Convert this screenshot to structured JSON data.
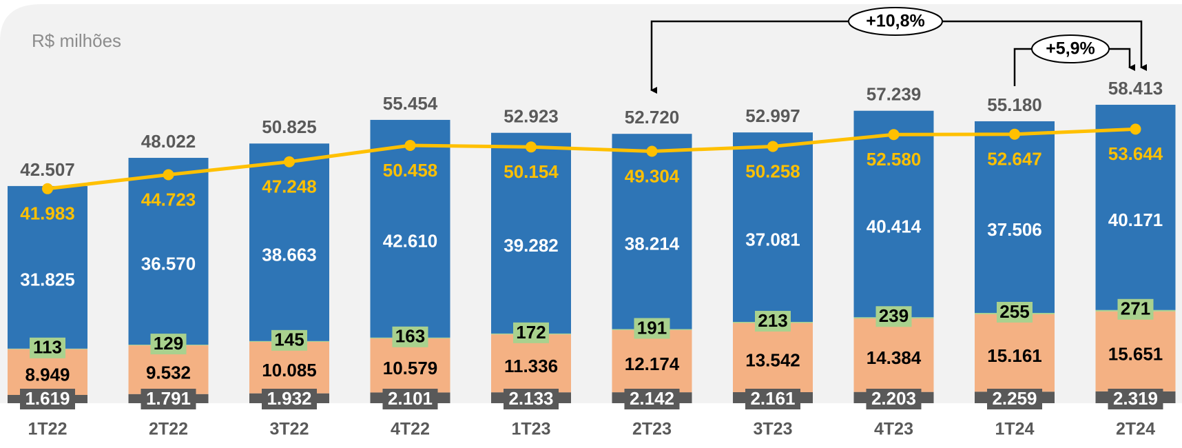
{
  "chart_data": {
    "type": "stacked-bar-line",
    "unit_label": "R$ milhões",
    "categories": [
      "1T22",
      "2T22",
      "3T22",
      "4T22",
      "1T23",
      "2T23",
      "3T23",
      "4T23",
      "1T24",
      "2T24"
    ],
    "series": [
      {
        "color": "#595959",
        "values": [
          1619,
          1791,
          1932,
          2101,
          2133,
          2142,
          2161,
          2203,
          2259,
          2319
        ],
        "value_labels": [
          "1.619",
          "1.791",
          "1.932",
          "2.101",
          "2.133",
          "2.142",
          "2.161",
          "2.203",
          "2.259",
          "2.319"
        ]
      },
      {
        "color": "#f4b183",
        "values": [
          8949,
          9532,
          10085,
          10579,
          11336,
          12174,
          13542,
          14384,
          15161,
          15651
        ],
        "value_labels": [
          "8.949",
          "9.532",
          "10.085",
          "10.579",
          "11.336",
          "12.174",
          "13.542",
          "14.384",
          "15.161",
          "15.651"
        ]
      },
      {
        "color": "#a9d18e",
        "values": [
          113,
          129,
          145,
          163,
          172,
          191,
          213,
          239,
          255,
          271
        ]
      },
      {
        "color": "#2e75b6",
        "values": [
          31825,
          36570,
          38663,
          42610,
          39282,
          38214,
          37081,
          40414,
          37506,
          40171
        ],
        "value_labels": [
          "31.825",
          "36.570",
          "38.663",
          "42.610",
          "39.282",
          "38.214",
          "37.081",
          "40.414",
          "37.506",
          "40.171"
        ]
      }
    ],
    "totals": {
      "values": [
        42507,
        48022,
        50825,
        55454,
        52923,
        52720,
        52997,
        57239,
        55180,
        58413
      ],
      "value_labels": [
        "42.507",
        "48.022",
        "50.825",
        "55.454",
        "52.923",
        "52.720",
        "52.997",
        "57.239",
        "55.180",
        "58.413"
      ]
    },
    "line_series": {
      "color": "#ffc000",
      "values": [
        41983,
        44723,
        47248,
        50458,
        50154,
        49304,
        50258,
        52580,
        52647,
        53644
      ],
      "value_labels": [
        "41.983",
        "44.723",
        "47.248",
        "50.458",
        "50.154",
        "49.304",
        "50.258",
        "52.580",
        "52.647",
        "53.644"
      ]
    },
    "annotations": [
      "+10,8%",
      "+5,9%"
    ]
  }
}
